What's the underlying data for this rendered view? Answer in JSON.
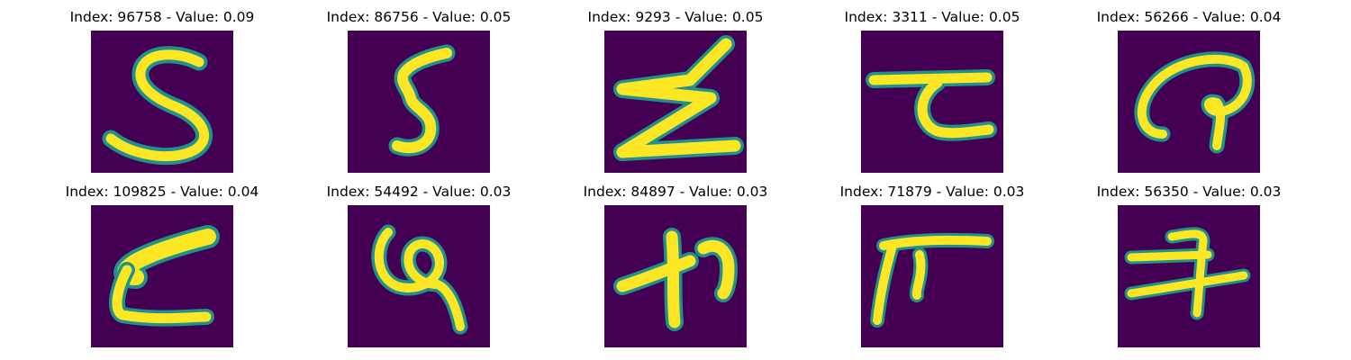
{
  "figure": {
    "panels": [
      {
        "title": "Index: 96758 - Value: 0.09",
        "index": 96758,
        "value": 0.09
      },
      {
        "title": "Index: 86756 - Value: 0.05",
        "index": 86756,
        "value": 0.05
      },
      {
        "title": "Index: 9293 - Value: 0.05",
        "index": 9293,
        "value": 0.05
      },
      {
        "title": "Index: 3311 - Value: 0.05",
        "index": 3311,
        "value": 0.05
      },
      {
        "title": "Index: 56266 - Value: 0.04",
        "index": 56266,
        "value": 0.04
      },
      {
        "title": "Index: 109825 - Value: 0.04",
        "index": 109825,
        "value": 0.04
      },
      {
        "title": "Index: 54492 - Value: 0.03",
        "index": 54492,
        "value": 0.03
      },
      {
        "title": "Index: 84897 - Value: 0.03",
        "index": 84897,
        "value": 0.03
      },
      {
        "title": "Index: 71879 - Value: 0.03",
        "index": 71879,
        "value": 0.03
      },
      {
        "title": "Index: 56350 - Value: 0.03",
        "index": 56350,
        "value": 0.03
      }
    ],
    "colormap": {
      "background": "#440154",
      "edge": "#21918c",
      "foreground": "#fde725"
    }
  }
}
